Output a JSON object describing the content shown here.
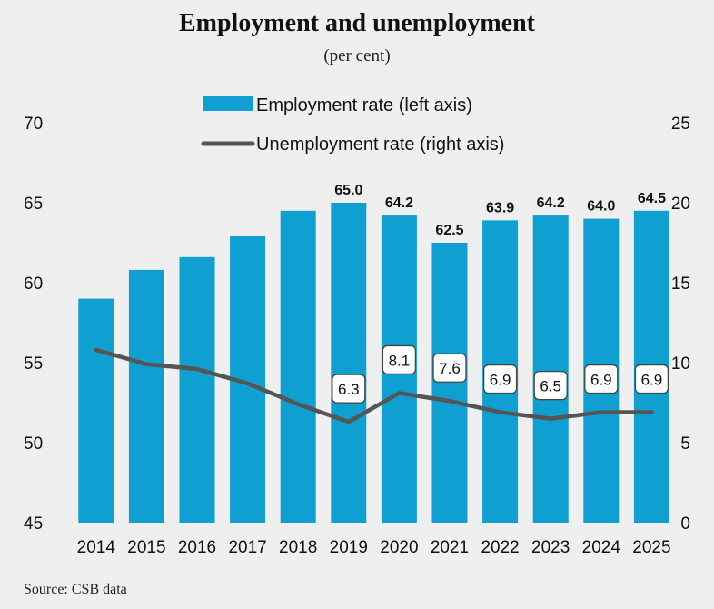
{
  "chart_data": {
    "type": "bar",
    "title": "Employment and unemployment",
    "subtitle": "(per cent)",
    "categories": [
      "2014",
      "2015",
      "2016",
      "2017",
      "2018",
      "2019",
      "2020",
      "2021",
      "2022",
      "2023",
      "2024",
      "2025"
    ],
    "series": [
      {
        "name": "Employment rate (left axis)",
        "type": "bar",
        "axis": "left",
        "color": "#0f9fd1",
        "values": [
          59.0,
          60.8,
          61.6,
          62.9,
          64.5,
          65.0,
          64.2,
          62.5,
          63.9,
          64.2,
          64.0,
          64.5
        ],
        "labels": [
          "",
          "",
          "",
          "",
          "",
          "65.0",
          "64.2",
          "62.5",
          "63.9",
          "64.2",
          "64.0",
          "64.5"
        ]
      },
      {
        "name": "Unemployment rate (right axis)",
        "type": "line",
        "axis": "right",
        "color": "#555555",
        "values": [
          10.8,
          9.9,
          9.6,
          8.7,
          7.4,
          6.3,
          8.1,
          7.6,
          6.9,
          6.5,
          6.9,
          6.9
        ],
        "labels": [
          "",
          "",
          "",
          "",
          "",
          "6.3",
          "8.1",
          "7.6",
          "6.9",
          "6.5",
          "6.9",
          "6.9"
        ]
      }
    ],
    "y_left": {
      "min": 45,
      "max": 70,
      "ticks": [
        "45",
        "50",
        "55",
        "60",
        "65",
        "70"
      ]
    },
    "y_right": {
      "min": 0,
      "max": 25,
      "ticks": [
        "0",
        "5",
        "10",
        "15",
        "20",
        "25"
      ]
    },
    "legend_position": "top-center",
    "grid": false
  },
  "source": "Source: CSB data"
}
